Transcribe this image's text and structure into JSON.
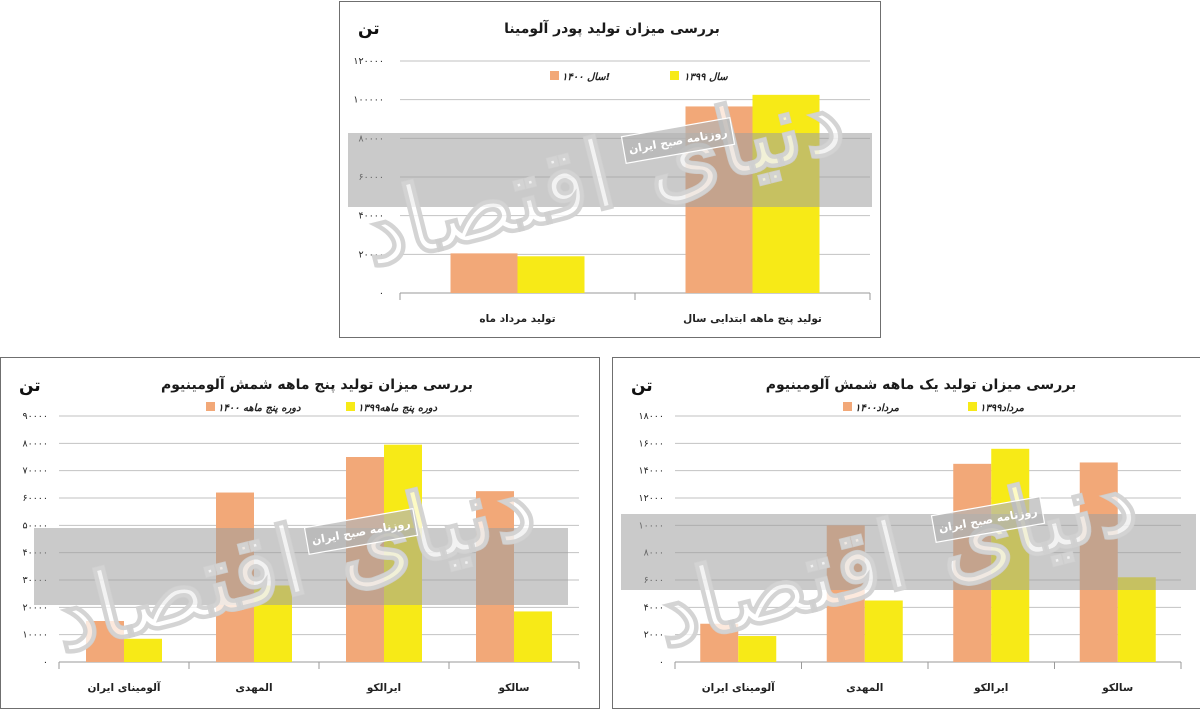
{
  "colors": {
    "series_1400": "#f2a878",
    "series_1399": "#f7ea17",
    "grid": "#c2c2c2",
    "band": "#9e9e9e"
  },
  "watermark": {
    "logo": "دنیای اقتصاد",
    "tag": "روزنامه صبح ایران"
  },
  "chart_data": [
    {
      "id": "top",
      "type": "bar",
      "title": "بررسی میزان تولید پودر آلومینا",
      "ylabel": "تن",
      "ylim": [
        0,
        120000
      ],
      "yticks": [
        0,
        20000,
        40000,
        60000,
        80000,
        100000,
        120000
      ],
      "ytick_labels": [
        "۰",
        "۲۰۰۰۰",
        "۴۰۰۰۰",
        "۶۰۰۰۰",
        "۸۰۰۰۰",
        "۱۰۰۰۰۰",
        "۱۲۰۰۰۰"
      ],
      "categories": [
        "تولید مرداد ماه",
        "تولید پنج ماهه ابتدایی سال"
      ],
      "legend_placement": "top",
      "series": [
        {
          "name": "سال ۱۴۰۰!",
          "values": [
            20500,
            96500
          ],
          "color": "#f2a878"
        },
        {
          "name": "سال ۱۳۹۹",
          "values": [
            19000,
            102500
          ],
          "color": "#f7ea17"
        }
      ]
    },
    {
      "id": "left",
      "type": "bar",
      "title": "بررسی میزان تولید پنج ماهه شمش آلومینیوم",
      "ylabel": "تن",
      "ylim": [
        0,
        90000
      ],
      "yticks": [
        0,
        10000,
        20000,
        30000,
        40000,
        50000,
        60000,
        70000,
        80000,
        90000
      ],
      "ytick_labels": [
        "۰",
        "۱۰۰۰۰",
        "۲۰۰۰۰",
        "۳۰۰۰۰",
        "۴۰۰۰۰",
        "۵۰۰۰۰",
        "۶۰۰۰۰",
        "۷۰۰۰۰",
        "۸۰۰۰۰",
        "۹۰۰۰۰"
      ],
      "categories": [
        "آلومینای ایران",
        "المهدی",
        "ایرالکو",
        "سالکو"
      ],
      "legend_placement": "top",
      "series": [
        {
          "name": "دوره پنج ماهه ۱۴۰۰",
          "values": [
            15000,
            62000,
            75000,
            62500
          ],
          "color": "#f2a878"
        },
        {
          "name": "دوره پنج ماهه۱۳۹۹",
          "values": [
            8500,
            28000,
            79500,
            18500
          ],
          "color": "#f7ea17"
        }
      ]
    },
    {
      "id": "right",
      "type": "bar",
      "title": "بررسی میزان تولید یک ماهه شمش آلومینیوم",
      "ylabel": "تن",
      "ylim": [
        0,
        18000
      ],
      "yticks": [
        0,
        2000,
        4000,
        6000,
        8000,
        10000,
        12000,
        14000,
        16000,
        18000
      ],
      "ytick_labels": [
        "۰",
        "۲۰۰۰",
        "۴۰۰۰",
        "۶۰۰۰",
        "۸۰۰۰",
        "۱۰۰۰۰",
        "۱۲۰۰۰",
        "۱۴۰۰۰",
        "۱۶۰۰۰",
        "۱۸۰۰۰"
      ],
      "categories": [
        "آلومینای ایران",
        "المهدی",
        "ایرالکو",
        "سالکو"
      ],
      "legend_placement": "top",
      "series": [
        {
          "name": "مرداد۱۴۰۰",
          "values": [
            2800,
            10000,
            14500,
            14600
          ],
          "color": "#f2a878"
        },
        {
          "name": "مرداد۱۳۹۹",
          "values": [
            1900,
            4500,
            15600,
            6200
          ],
          "color": "#f7ea17"
        }
      ]
    }
  ]
}
